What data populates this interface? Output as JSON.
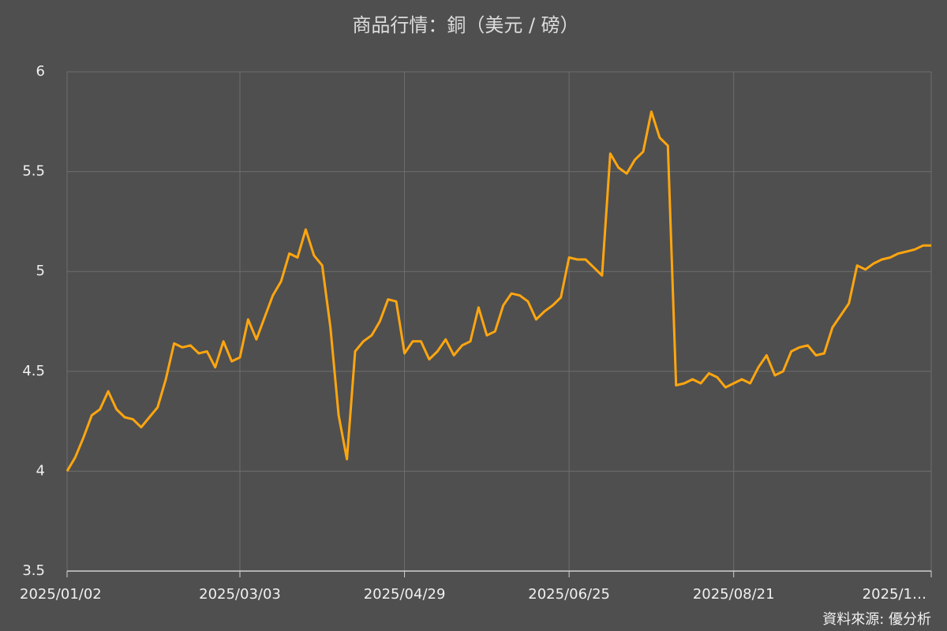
{
  "chart_data": {
    "type": "line",
    "title": "商品行情：銅（美元 / 磅）",
    "source": "資料來源: 優分析",
    "categories": [
      "2025/01/02",
      null,
      null,
      null,
      null,
      null,
      null,
      null,
      null,
      null,
      null,
      null,
      null,
      null,
      null,
      null,
      null,
      null,
      null,
      null,
      null,
      "2025/03/03",
      null,
      null,
      null,
      null,
      null,
      null,
      null,
      null,
      null,
      null,
      null,
      null,
      null,
      null,
      null,
      null,
      null,
      null,
      null,
      "2025/04/29",
      null,
      null,
      null,
      null,
      null,
      null,
      null,
      null,
      null,
      null,
      null,
      null,
      null,
      null,
      null,
      null,
      null,
      null,
      null,
      "2025/06/25",
      null,
      null,
      null,
      null,
      null,
      null,
      null,
      null,
      null,
      null,
      null,
      null,
      null,
      null,
      null,
      null,
      null,
      null,
      null,
      "2025/08/21",
      null,
      null,
      null,
      null,
      null,
      null,
      null,
      null,
      null,
      null,
      null,
      null,
      null,
      null,
      null,
      null,
      null,
      null,
      null,
      null,
      null,
      null,
      null,
      "2025/1…"
    ],
    "values": [
      4.0,
      4.07,
      4.17,
      4.28,
      4.31,
      4.4,
      4.31,
      4.27,
      4.26,
      4.22,
      4.27,
      4.32,
      4.46,
      4.64,
      4.62,
      4.63,
      4.59,
      4.6,
      4.52,
      4.65,
      4.55,
      4.57,
      4.76,
      4.66,
      4.77,
      4.88,
      4.95,
      5.09,
      5.07,
      5.21,
      5.08,
      5.03,
      4.72,
      4.28,
      4.06,
      4.6,
      4.65,
      4.68,
      4.75,
      4.86,
      4.85,
      4.59,
      4.65,
      4.65,
      4.56,
      4.6,
      4.66,
      4.58,
      4.63,
      4.65,
      4.82,
      4.68,
      4.7,
      4.83,
      4.89,
      4.88,
      4.85,
      4.76,
      4.8,
      4.83,
      4.87,
      5.07,
      5.06,
      5.06,
      5.02,
      4.98,
      5.59,
      5.52,
      5.49,
      5.56,
      5.6,
      5.8,
      5.67,
      5.63,
      4.43,
      4.44,
      4.46,
      4.44,
      4.49,
      4.47,
      4.42,
      4.44,
      4.46,
      4.44,
      4.52,
      4.58,
      4.48,
      4.5,
      4.6,
      4.62,
      4.63,
      4.58,
      4.59,
      4.72,
      4.78,
      4.84,
      5.03,
      5.01,
      5.04,
      5.06,
      5.07,
      5.09,
      5.1,
      5.11,
      5.13,
      5.13
    ],
    "color": "#ffa60f",
    "ylim": [
      3.5,
      6
    ],
    "yticks": [
      3.5,
      4,
      4.5,
      5,
      5.5,
      6
    ],
    "grid": true
  }
}
